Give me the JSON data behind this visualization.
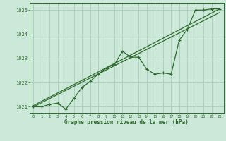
{
  "x": [
    0,
    1,
    2,
    3,
    4,
    5,
    6,
    7,
    8,
    9,
    10,
    11,
    12,
    13,
    14,
    15,
    16,
    17,
    18,
    19,
    20,
    21,
    22,
    23
  ],
  "pressure_main": [
    1021.0,
    1021.0,
    1021.1,
    1021.15,
    1020.9,
    1021.35,
    1021.8,
    1022.05,
    1022.35,
    1022.6,
    1022.75,
    1023.3,
    1023.05,
    1023.05,
    1022.55,
    1022.35,
    1022.4,
    1022.35,
    1023.75,
    1024.2,
    1025.0,
    1025.0,
    1025.05,
    1025.05
  ],
  "line1_x": [
    0,
    23
  ],
  "line1_y": [
    1021.0,
    1024.9
  ],
  "line2_x": [
    0,
    23
  ],
  "line2_y": [
    1021.05,
    1025.05
  ],
  "line_color": "#2d6a2d",
  "bg_color": "#cce8d8",
  "grid_color": "#aaccbb",
  "title": "Graphe pression niveau de la mer (hPa)",
  "ylim": [
    1020.75,
    1025.3
  ],
  "xlim": [
    -0.5,
    23.5
  ],
  "yticks": [
    1021,
    1022,
    1023,
    1024,
    1025
  ],
  "xticks": [
    0,
    1,
    2,
    3,
    4,
    5,
    6,
    7,
    8,
    9,
    10,
    11,
    12,
    13,
    14,
    15,
    16,
    17,
    18,
    19,
    20,
    21,
    22,
    23
  ]
}
